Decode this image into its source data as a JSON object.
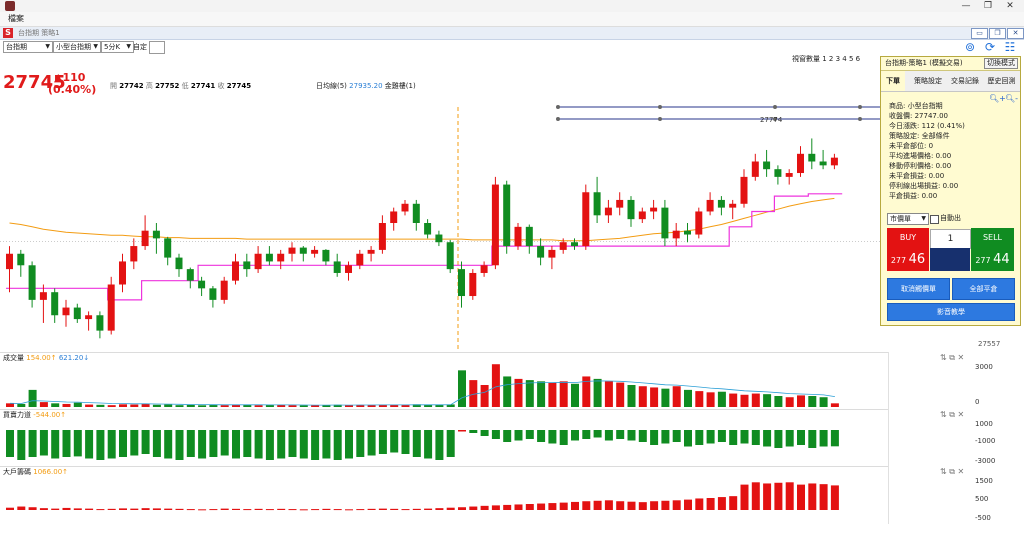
{
  "menu": {
    "file": "檔案"
  },
  "window": {
    "minimize_icon": "minimize-icon",
    "maximize_icon": "maximize-icon",
    "close_icon": "close-icon"
  },
  "document": {
    "title": "台指期 策略1"
  },
  "toolbar": {
    "market": "台指期",
    "contract": "小型台指期",
    "period": "5分K",
    "custom_label": "自定",
    "custom_value": "",
    "pager": "視窗數量 1 2 3 4 5 6"
  },
  "quote": {
    "last": "27745",
    "change": "▲110",
    "change_pct": "(0.40%)",
    "open_label": "開",
    "open": "27742",
    "high_label": "高",
    "high": "27752",
    "low_label": "低",
    "low": "27741",
    "close_label": "收",
    "close": "27745",
    "ma_label": "日均線(5)",
    "ma_value": "27935.20",
    "ma_suffix": "金雞樓(1)",
    "price_tick": "27557",
    "top_marker": "27774"
  },
  "panels": {
    "volume": {
      "label": "成交量",
      "v1": "154.00↑",
      "v2": "621.20↓",
      "ticks": [
        "3000",
        "0"
      ]
    },
    "power": {
      "label": "買賣力道",
      "v1": "-544.00↑",
      "ticks": [
        "1000",
        "-1000",
        "-3000"
      ]
    },
    "whale": {
      "label": "大戶籌碼",
      "v1": "1066.00↑",
      "ticks": [
        "1500",
        "500",
        "-500"
      ]
    }
  },
  "trade_panel": {
    "title": "台指期-策略1 (模擬交易)",
    "mode_button": "切換模式",
    "tabs": [
      "下單",
      "策略設定",
      "交易記錄",
      "歷史回測"
    ],
    "info": [
      "商品: 小型台指期",
      "收盤價: 27747.00",
      "今日漲跌: 112 (0.41%)",
      "策略設定: 全部條件",
      "未平倉部位: 0",
      "平均進場價格: 0.00",
      "移動停利價格: 0.00",
      "未平倉損益: 0.00",
      "停利線出場損益: 0.00",
      "平倉損益: 0.00"
    ],
    "order_type": "市價單",
    "auto_label": "自動出",
    "buy_label": "BUY",
    "sell_label": "SELL",
    "qty": "1",
    "buy_price_prefix": "277",
    "buy_price_suffix": "46",
    "sell_price_prefix": "277",
    "sell_price_suffix": "44",
    "cancel_button": "取消觸價單",
    "close_all_button": "全部平倉",
    "video_button": "影音教學"
  },
  "colors": {
    "up": "#e31212",
    "down": "#108c21",
    "ma_orange": "#f39c12",
    "magenta": "#ee33dd",
    "green_line": "#22cc22",
    "navy": "#27348b"
  },
  "chart_data": {
    "type": "candlestick",
    "candles": [
      [
        27570,
        27600,
        27540,
        27590
      ],
      [
        27590,
        27595,
        27560,
        27575
      ],
      [
        27575,
        27580,
        27520,
        27530
      ],
      [
        27530,
        27550,
        27500,
        27540
      ],
      [
        27540,
        27545,
        27500,
        27510
      ],
      [
        27510,
        27530,
        27495,
        27520
      ],
      [
        27520,
        27525,
        27500,
        27505
      ],
      [
        27505,
        27515,
        27490,
        27510
      ],
      [
        27510,
        27515,
        27480,
        27490
      ],
      [
        27490,
        27560,
        27485,
        27550
      ],
      [
        27550,
        27590,
        27540,
        27580
      ],
      [
        27580,
        27610,
        27570,
        27600
      ],
      [
        27600,
        27640,
        27595,
        27620
      ],
      [
        27620,
        27630,
        27590,
        27610
      ],
      [
        27610,
        27612,
        27575,
        27585
      ],
      [
        27585,
        27590,
        27560,
        27570
      ],
      [
        27570,
        27572,
        27545,
        27555
      ],
      [
        27555,
        27560,
        27535,
        27545
      ],
      [
        27545,
        27548,
        27520,
        27530
      ],
      [
        27530,
        27560,
        27525,
        27555
      ],
      [
        27555,
        27590,
        27550,
        27580
      ],
      [
        27580,
        27590,
        27560,
        27570
      ],
      [
        27570,
        27600,
        27565,
        27590
      ],
      [
        27590,
        27600,
        27575,
        27580
      ],
      [
        27580,
        27595,
        27570,
        27590
      ],
      [
        27590,
        27605,
        27580,
        27598
      ],
      [
        27598,
        27600,
        27580,
        27590
      ],
      [
        27590,
        27600,
        27585,
        27595
      ],
      [
        27595,
        27596,
        27575,
        27580
      ],
      [
        27580,
        27590,
        27560,
        27565
      ],
      [
        27565,
        27580,
        27555,
        27575
      ],
      [
        27575,
        27595,
        27570,
        27590
      ],
      [
        27590,
        27600,
        27580,
        27595
      ],
      [
        27595,
        27640,
        27590,
        27630
      ],
      [
        27630,
        27650,
        27620,
        27645
      ],
      [
        27645,
        27660,
        27640,
        27655
      ],
      [
        27655,
        27660,
        27620,
        27630
      ],
      [
        27630,
        27635,
        27610,
        27615
      ],
      [
        27615,
        27620,
        27600,
        27605
      ],
      [
        27605,
        27608,
        27565,
        27570
      ],
      [
        27570,
        27580,
        27520,
        27535
      ],
      [
        27535,
        27570,
        27530,
        27565
      ],
      [
        27565,
        27580,
        27560,
        27575
      ],
      [
        27575,
        27690,
        27570,
        27680
      ],
      [
        27680,
        27685,
        27590,
        27600
      ],
      [
        27600,
        27630,
        27595,
        27625
      ],
      [
        27625,
        27628,
        27590,
        27600
      ],
      [
        27600,
        27610,
        27575,
        27585
      ],
      [
        27585,
        27600,
        27570,
        27595
      ],
      [
        27595,
        27610,
        27590,
        27605
      ],
      [
        27605,
        27610,
        27595,
        27600
      ],
      [
        27600,
        27680,
        27595,
        27670
      ],
      [
        27670,
        27690,
        27630,
        27640
      ],
      [
        27640,
        27660,
        27630,
        27650
      ],
      [
        27650,
        27670,
        27640,
        27660
      ],
      [
        27660,
        27665,
        27625,
        27635
      ],
      [
        27635,
        27650,
        27630,
        27645
      ],
      [
        27645,
        27660,
        27635,
        27650
      ],
      [
        27650,
        27660,
        27600,
        27610
      ],
      [
        27610,
        27630,
        27600,
        27620
      ],
      [
        27620,
        27630,
        27605,
        27615
      ],
      [
        27615,
        27650,
        27610,
        27645
      ],
      [
        27645,
        27670,
        27640,
        27660
      ],
      [
        27660,
        27665,
        27640,
        27650
      ],
      [
        27650,
        27660,
        27635,
        27655
      ],
      [
        27655,
        27700,
        27650,
        27690
      ],
      [
        27690,
        27720,
        27685,
        27710
      ],
      [
        27710,
        27725,
        27690,
        27700
      ],
      [
        27700,
        27705,
        27680,
        27690
      ],
      [
        27690,
        27700,
        27680,
        27695
      ],
      [
        27695,
        27730,
        27690,
        27720
      ],
      [
        27720,
        27740,
        27700,
        27710
      ],
      [
        27710,
        27725,
        27700,
        27705
      ],
      [
        27705,
        27720,
        27700,
        27715
      ]
    ],
    "ma": [
      27630,
      27628,
      27625,
      27622,
      27620,
      27618,
      27617,
      27616,
      27615,
      27614,
      27614,
      27613,
      27612,
      27612,
      27611,
      27611,
      27610,
      27610,
      27610,
      27610,
      27610,
      27609,
      27609,
      27609,
      27609,
      27609,
      27609,
      27609,
      27609,
      27609,
      27609,
      27609,
      27609,
      27609,
      27609,
      27609,
      27609,
      27609,
      27609,
      27609,
      27609,
      27608,
      27608,
      27608,
      27608,
      27608,
      27608,
      27608,
      27608,
      27607,
      27607,
      27607,
      27608,
      27609,
      27610,
      27612,
      27614,
      27616,
      27617,
      27618,
      27620,
      27622,
      27625,
      27628,
      27632,
      27636,
      27640,
      27644,
      27648,
      27652,
      27655,
      27658,
      27660,
      27662
    ],
    "supertrend": [
      27545,
      27545,
      27545,
      27545,
      27545,
      27545,
      27545,
      27545,
      27545,
      27530,
      27530,
      27530,
      27555,
      27555,
      27555,
      27555,
      27555,
      27575,
      27575,
      27575,
      27575,
      27575,
      27575,
      27575,
      27575,
      27575,
      27575,
      27575,
      27575,
      27575,
      27575,
      27575,
      27575,
      27575,
      27575,
      27575,
      27575,
      27575,
      27575,
      27575,
      27575,
      27575,
      27575,
      27600,
      27600,
      27600,
      27600,
      27600,
      27600,
      27600,
      27600,
      27600,
      27600,
      27600,
      27600,
      27600,
      27600,
      27600,
      27600,
      27600,
      27600,
      27600,
      27600,
      27600,
      27625,
      27625,
      27645,
      27645,
      27665,
      27665,
      27665,
      27668,
      27668,
      27668
    ],
    "volume": [
      300,
      250,
      1400,
      400,
      300,
      250,
      350,
      200,
      180,
      150,
      220,
      200,
      250,
      180,
      200,
      150,
      170,
      140,
      160,
      150,
      200,
      180,
      150,
      160,
      170,
      150,
      140,
      130,
      160,
      180,
      150,
      170,
      160,
      200,
      180,
      160,
      220,
      200,
      170,
      210,
      3000,
      2200,
      1800,
      3500,
      2500,
      2300,
      2200,
      2100,
      2000,
      2100,
      1900,
      2500,
      2300,
      2100,
      2000,
      1800,
      1700,
      1600,
      1500,
      1700,
      1400,
      1300,
      1200,
      1250,
      1100,
      1000,
      1100,
      1050,
      900,
      800,
      950,
      900,
      800,
      300
    ],
    "power": [
      -900,
      -1000,
      -900,
      -850,
      -950,
      -900,
      -880,
      -950,
      -1000,
      -950,
      -900,
      -850,
      -800,
      -900,
      -950,
      -1000,
      -900,
      -950,
      -900,
      -850,
      -950,
      -900,
      -950,
      -1000,
      -950,
      -900,
      -950,
      -1000,
      -950,
      -1000,
      -950,
      -900,
      -850,
      -800,
      -750,
      -800,
      -900,
      -950,
      -1000,
      -900,
      -50,
      -100,
      -200,
      -300,
      -400,
      -350,
      -300,
      -400,
      -450,
      -500,
      -350,
      -300,
      -250,
      -350,
      -300,
      -350,
      -400,
      -500,
      -450,
      -400,
      -550,
      -500,
      -450,
      -400,
      -500,
      -450,
      -500,
      -550,
      -600,
      -550,
      -500,
      -600,
      -550,
      -544
    ],
    "whale": [
      100,
      150,
      120,
      80,
      60,
      90,
      70,
      60,
      40,
      50,
      70,
      60,
      80,
      70,
      60,
      50,
      40,
      30,
      40,
      60,
      50,
      40,
      50,
      40,
      50,
      40,
      30,
      40,
      50,
      40,
      30,
      40,
      50,
      60,
      50,
      40,
      50,
      60,
      80,
      100,
      120,
      150,
      180,
      200,
      220,
      240,
      260,
      280,
      300,
      320,
      350,
      380,
      400,
      420,
      380,
      360,
      340,
      380,
      400,
      420,
      450,
      500,
      520,
      560,
      600,
      1100,
      1200,
      1150,
      1180,
      1200,
      1100,
      1150,
      1120,
      1066
    ]
  }
}
